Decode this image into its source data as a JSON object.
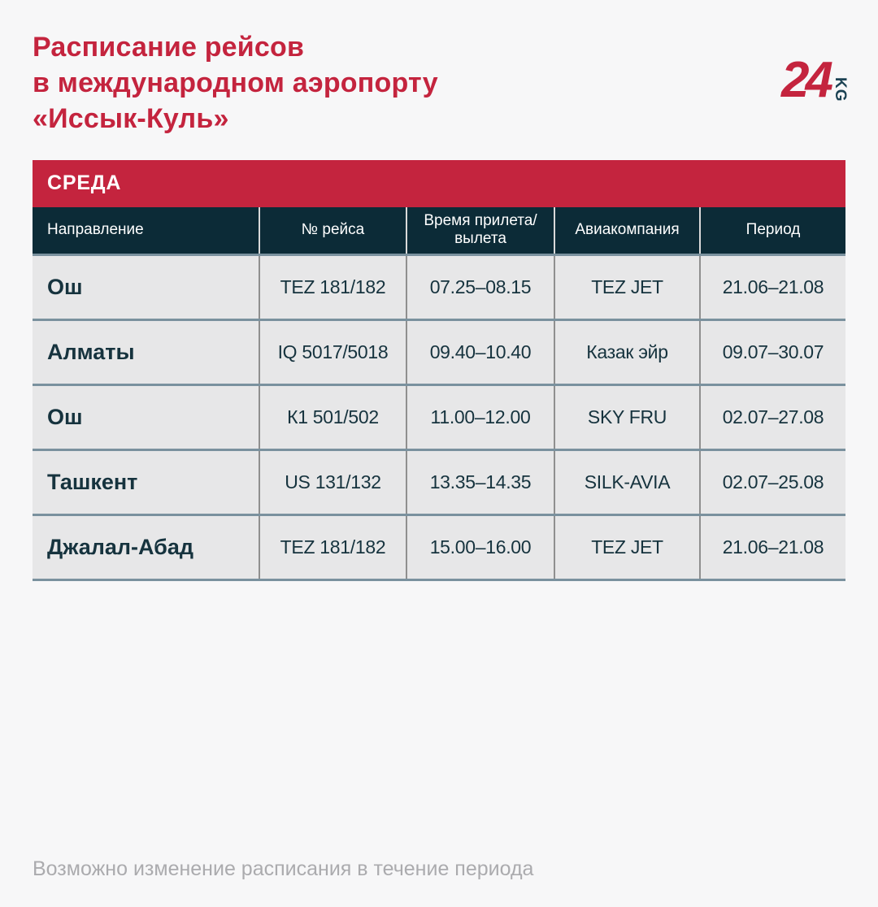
{
  "header": {
    "title": "Расписание рейсов\nв международном аэропорту\n«Иссык-Куль»",
    "logo": {
      "number": "24",
      "suffix": "KG"
    }
  },
  "day_banner": {
    "label": "СРЕДА"
  },
  "table": {
    "headers": [
      "Направление",
      "№ рейса",
      "Время прилета/\nвылета",
      "Авиакомпания",
      "Период"
    ],
    "rows": [
      {
        "destination": "Ош",
        "flight_no": "TEZ 181/182",
        "time": "07.25–08.15",
        "airline": "TEZ JET",
        "period": "21.06–21.08"
      },
      {
        "destination": "Алматы",
        "flight_no": "IQ 5017/5018",
        "time": "09.40–10.40",
        "airline": "Казак эйр",
        "period": "09.07–30.07"
      },
      {
        "destination": "Ош",
        "flight_no": "К1 501/502",
        "time": "11.00–12.00",
        "airline": "SKY FRU",
        "period": "02.07–27.08"
      },
      {
        "destination": "Ташкент",
        "flight_no": "US 131/132",
        "time": "13.35–14.35",
        "airline": "SILK-AVIA",
        "period": "02.07–25.08"
      },
      {
        "destination": "Джалал-Абад",
        "flight_no": "TEZ 181/182",
        "time": "15.00–16.00",
        "airline": "TEZ JET",
        "period": "21.06–21.08"
      }
    ]
  },
  "footer": {
    "note": "Возможно изменение расписания в течение периода"
  },
  "colors": {
    "accent_red": "#C4243E",
    "header_navy": "#0C2B37",
    "row_background": "#E7E7E8",
    "divider_blue": "#7A919E",
    "text_navy": "#16333E",
    "footer_gray": "#ABABAE"
  }
}
